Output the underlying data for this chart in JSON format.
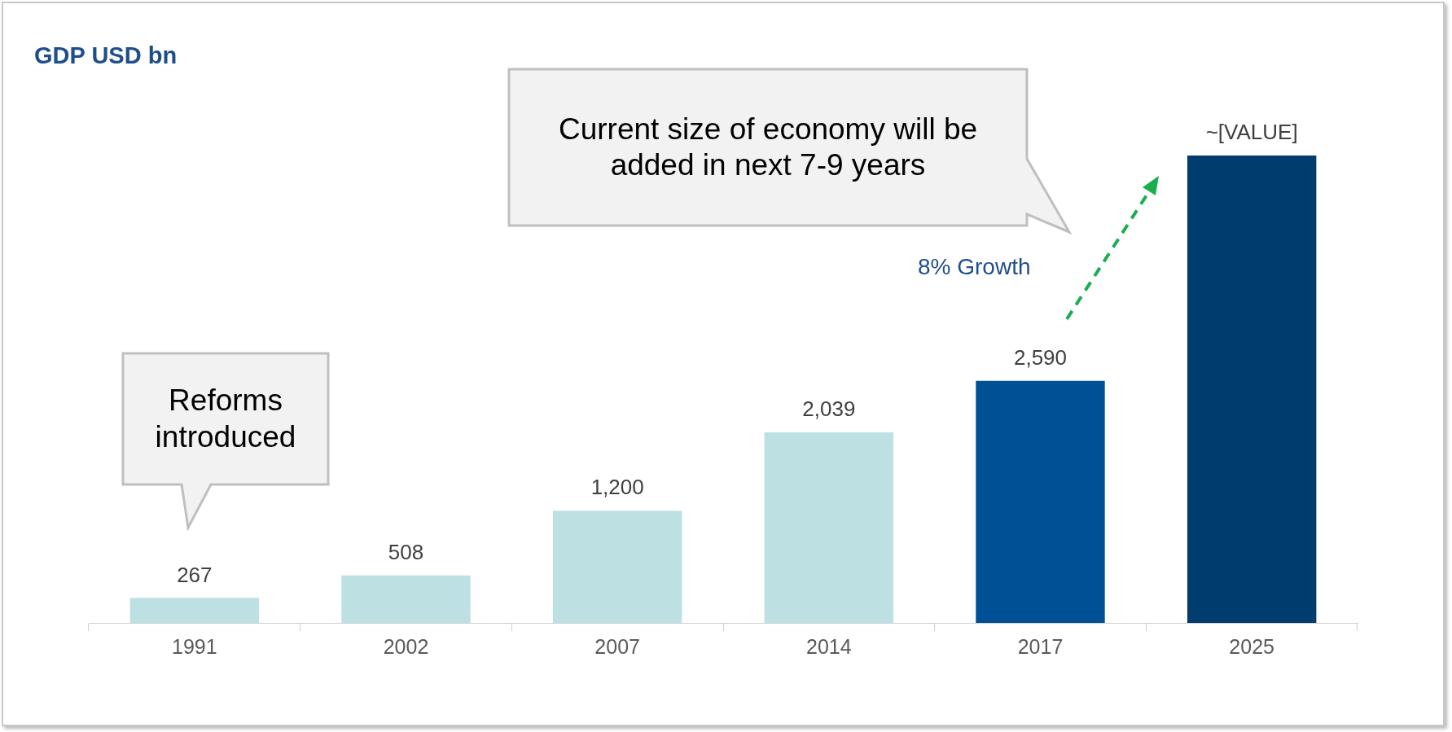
{
  "chart_data": {
    "type": "bar",
    "title": "GDP USD bn",
    "categories": [
      "1991",
      "2002",
      "2007",
      "2014",
      "2017",
      "2025"
    ],
    "values": [
      267,
      508,
      1200,
      2039,
      2590,
      5000
    ],
    "colors": [
      "#bde0e3",
      "#bde0e3",
      "#bde0e3",
      "#bde0e3",
      "#005096",
      "#003c6e"
    ],
    "value_labels": [
      "267",
      "508",
      "1,200",
      "2,039",
      "2,590",
      "~[VALUE]"
    ],
    "annotations": [
      "Reforms introduced",
      "Current size of economy will be added in next 7-9 years",
      "8% Growth"
    ]
  }
}
